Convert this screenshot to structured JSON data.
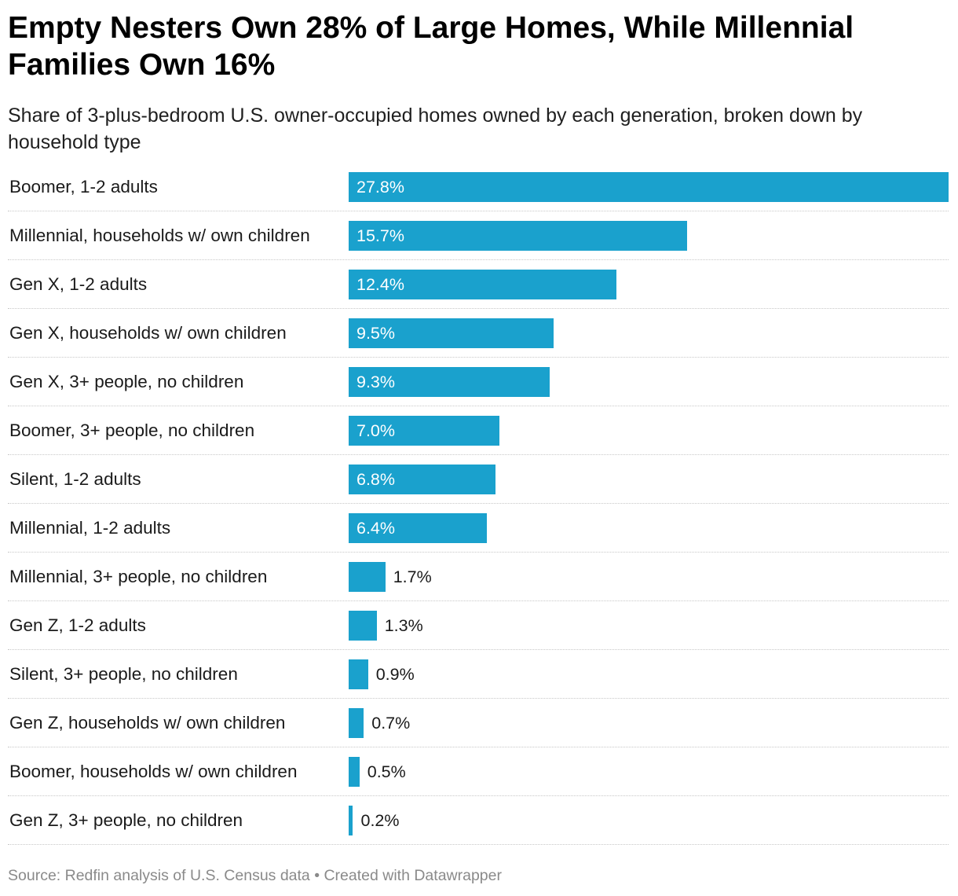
{
  "title": "Empty Nesters Own 28% of Large Homes, While Millennial Families Own 16%",
  "subtitle": "Share of 3-plus-bedroom U.S. owner-occupied homes owned by each generation, broken down by household type",
  "footer": {
    "source": "Source: Redfin analysis of U.S. Census data",
    "separator": " • ",
    "credit": "Created with Datawrapper"
  },
  "colors": {
    "bar": "#1aa1cd",
    "label_inside": "#ffffff",
    "label_outside": "#1a1a1a",
    "divider": "#c8c8c8"
  },
  "chart_data": {
    "type": "bar",
    "orientation": "horizontal",
    "categories": [
      "Boomer, 1-2 adults",
      "Millennial, households w/ own children",
      "Gen X, 1-2 adults",
      "Gen X, households w/ own children",
      "Gen X, 3+ people, no children",
      "Boomer, 3+ people, no children",
      "Silent, 1-2 adults",
      "Millennial, 1-2 adults",
      "Millennial, 3+ people, no children",
      "Gen Z, 1-2 adults",
      "Silent, 3+ people, no children",
      "Gen Z, households w/ own children",
      "Boomer, households w/ own children",
      "Gen Z, 3+ people, no children"
    ],
    "values": [
      27.8,
      15.7,
      12.4,
      9.5,
      9.3,
      7.0,
      6.8,
      6.4,
      1.7,
      1.3,
      0.9,
      0.7,
      0.5,
      0.2
    ],
    "value_labels": [
      "27.8%",
      "15.7%",
      "12.4%",
      "9.5%",
      "9.3%",
      "7.0%",
      "6.8%",
      "6.4%",
      "1.7%",
      "1.3%",
      "0.9%",
      "0.7%",
      "0.5%",
      "0.2%"
    ],
    "unit": "%",
    "xlim": [
      0,
      27.8
    ],
    "grid": false,
    "legend": "none"
  }
}
